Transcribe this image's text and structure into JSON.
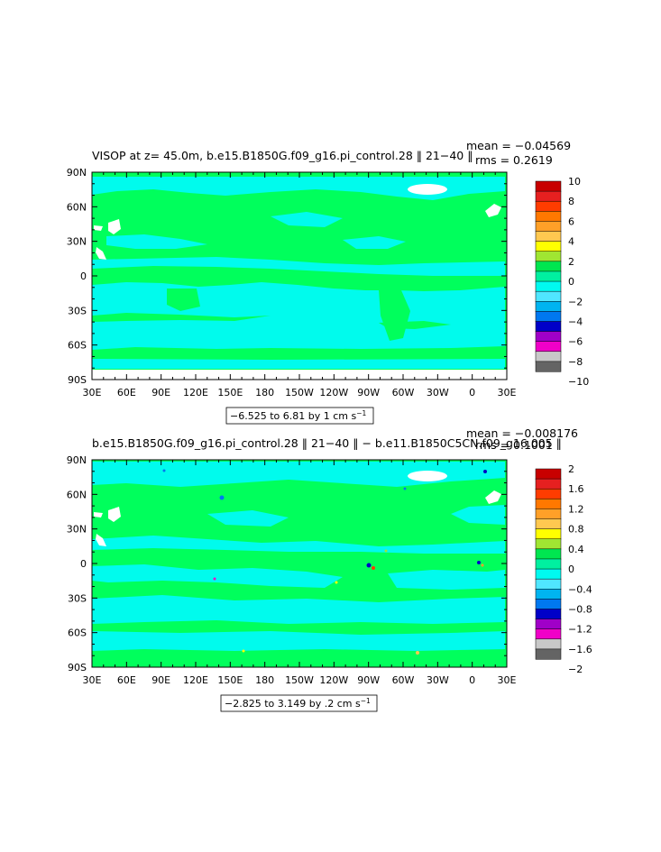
{
  "chart_data": [
    {
      "type": "heatmap",
      "title": "VISOP at z=   45.0m, b.e15.B1850G.f09_g16.pi_control.28 ‖ 21−40 ‖",
      "stat_mean": "mean = −0.04569",
      "stat_rms": "rms = 0.2619",
      "x_ticks": [
        "30E",
        "60E",
        "90E",
        "120E",
        "150E",
        "180",
        "150W",
        "120W",
        "90W",
        "60W",
        "30W",
        "0",
        "30E"
      ],
      "y_ticks": [
        "90N",
        "60N",
        "30N",
        "0",
        "30S",
        "60S",
        "90S"
      ],
      "range_label": "−6.525 to 6.81 by 1 cm s",
      "range_unit_exp": "−1",
      "colorbar": {
        "labels": [
          "10",
          "8",
          "6",
          "4",
          "2",
          "0",
          "−2",
          "−4",
          "−6",
          "−8",
          "−10"
        ],
        "colors": [
          "#c80000",
          "#e62020",
          "#ff3c00",
          "#ff7800",
          "#ffa028",
          "#ffc850",
          "#ffff00",
          "#a0e632",
          "#00e650",
          "#00f0a0",
          "#00faf0",
          "#50e6ff",
          "#00b4f0",
          "#0078f0",
          "#0000c8",
          "#a000c8",
          "#f000c8",
          "#c8c8c8",
          "#646464"
        ]
      },
      "field": {
        "ocean": "#00fbed",
        "land": "#00ff5c",
        "ice": "#ffffff"
      }
    },
    {
      "type": "heatmap",
      "title": "b.e15.B1850G.f09_g16.pi_control.28 ‖ 21−40 ‖  −  b.e11.B1850C5CN.f09_g16.005 ‖",
      "stat_mean": "mean = −0.008176",
      "stat_rms": "rms = 0.1001",
      "x_ticks": [
        "30E",
        "60E",
        "90E",
        "120E",
        "150E",
        "180",
        "150W",
        "120W",
        "90W",
        "60W",
        "30W",
        "0",
        "30E"
      ],
      "y_ticks": [
        "90N",
        "60N",
        "30N",
        "0",
        "30S",
        "60S",
        "90S"
      ],
      "range_label": "−2.825 to 3.149 by .2 cm s",
      "range_unit_exp": "−1",
      "colorbar": {
        "labels": [
          "2",
          "1.6",
          "1.2",
          "0.8",
          "0.4",
          "0",
          "−0.4",
          "−0.8",
          "−1.2",
          "−1.6",
          "−2"
        ],
        "colors": [
          "#c80000",
          "#e62020",
          "#ff3c00",
          "#ff7800",
          "#ffa028",
          "#ffc850",
          "#ffff00",
          "#a0e632",
          "#00e650",
          "#00f0a0",
          "#00faf0",
          "#50e6ff",
          "#00b4f0",
          "#0078f0",
          "#0000c8",
          "#a000c8",
          "#f000c8",
          "#c8c8c8",
          "#646464"
        ]
      },
      "field": {
        "ocean": "#00fbed",
        "land": "#00ff5c",
        "ice": "#ffffff"
      }
    }
  ]
}
